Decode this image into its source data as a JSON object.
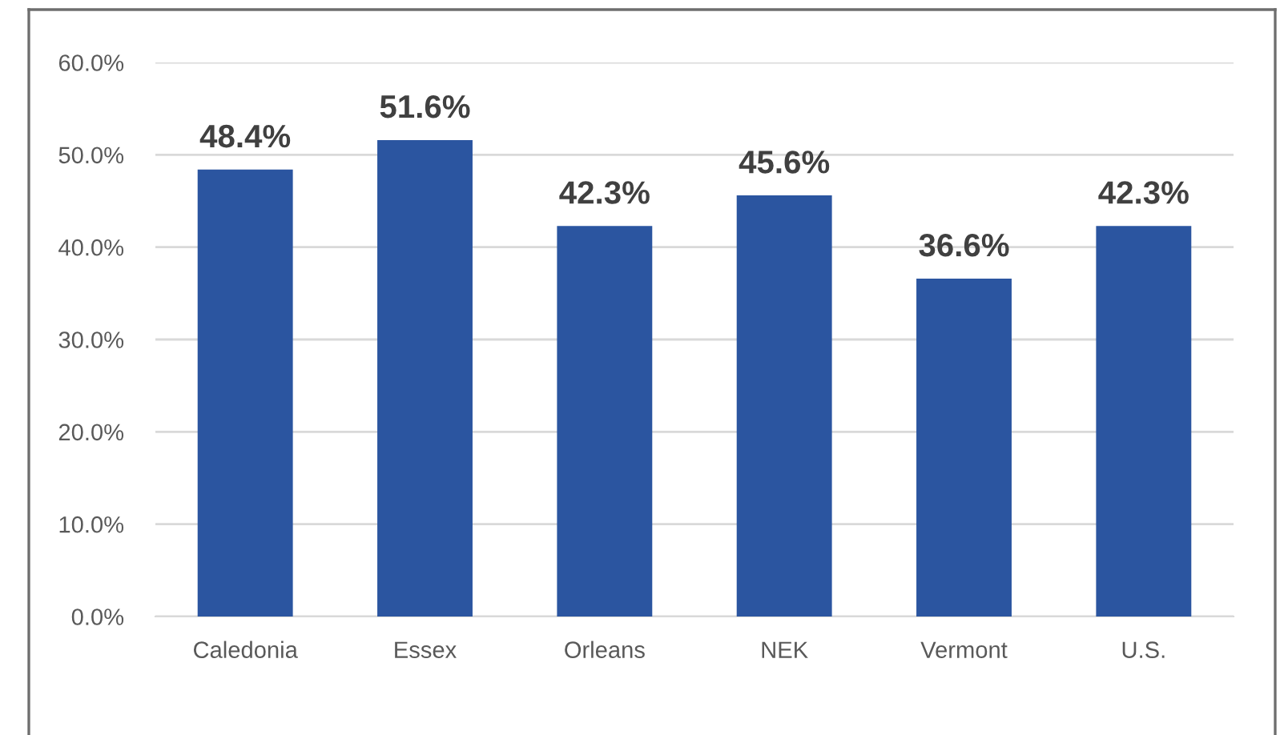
{
  "chart_data": {
    "type": "bar",
    "categories": [
      "Caledonia",
      "Essex",
      "Orleans",
      "NEK",
      "Vermont",
      "U.S."
    ],
    "values": [
      48.4,
      51.6,
      42.3,
      45.6,
      36.6,
      42.3
    ],
    "value_labels": [
      "48.4%",
      "51.6%",
      "42.3%",
      "45.6%",
      "36.6%",
      "42.3%"
    ],
    "color": "#2b55a0",
    "ylim": [
      0,
      60
    ],
    "yticks": [
      {
        "value": 0,
        "label": "0.0%"
      },
      {
        "value": 10,
        "label": "10.0%"
      },
      {
        "value": 20,
        "label": "20.0%"
      },
      {
        "value": 30,
        "label": "30.0%"
      },
      {
        "value": 40,
        "label": "40.0%"
      },
      {
        "value": 50,
        "label": "50.0%"
      },
      {
        "value": 60,
        "label": "60.0%"
      }
    ],
    "grid": "y"
  }
}
